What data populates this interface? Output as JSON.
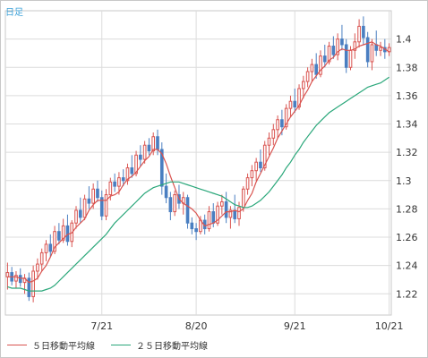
{
  "period_label": "日足",
  "colors": {
    "up": "#d9534f",
    "down": "#4a7fc1",
    "ma5": "#d9534f",
    "ma25": "#2aa77a",
    "grid": "#dcdcdc",
    "period_label": "#3aa0d8"
  },
  "chart_data": {
    "type": "candlestick",
    "title": "",
    "xlabel": "",
    "ylabel": "",
    "ylim": [
      1.205,
      1.42
    ],
    "y_ticks": [
      "1.22",
      "1.24",
      "1.26",
      "1.28",
      "1.3",
      "1.32",
      "1.34",
      "1.36",
      "1.38",
      "1.4"
    ],
    "x_ticks": [
      {
        "label": "7/21",
        "index": 22
      },
      {
        "label": "8/20",
        "index": 44
      },
      {
        "label": "9/21",
        "index": 67
      },
      {
        "label": "10/21",
        "index": 89
      }
    ],
    "grid": true,
    "legend_position": "bottom",
    "candles": [
      [
        1.232,
        1.242,
        1.223,
        1.235
      ],
      [
        1.235,
        1.239,
        1.226,
        1.229
      ],
      [
        1.229,
        1.236,
        1.224,
        1.233
      ],
      [
        1.233,
        1.238,
        1.225,
        1.228
      ],
      [
        1.228,
        1.234,
        1.22,
        1.231
      ],
      [
        1.231,
        1.235,
        1.215,
        1.218
      ],
      [
        1.218,
        1.24,
        1.214,
        1.236
      ],
      [
        1.236,
        1.245,
        1.23,
        1.241
      ],
      [
        1.241,
        1.252,
        1.236,
        1.249
      ],
      [
        1.249,
        1.258,
        1.243,
        1.255
      ],
      [
        1.255,
        1.262,
        1.246,
        1.25
      ],
      [
        1.25,
        1.268,
        1.248,
        1.264
      ],
      [
        1.264,
        1.27,
        1.255,
        1.258
      ],
      [
        1.258,
        1.273,
        1.256,
        1.268
      ],
      [
        1.268,
        1.276,
        1.254,
        1.257
      ],
      [
        1.257,
        1.272,
        1.253,
        1.27
      ],
      [
        1.27,
        1.282,
        1.266,
        1.279
      ],
      [
        1.279,
        1.288,
        1.27,
        1.274
      ],
      [
        1.274,
        1.29,
        1.272,
        1.287
      ],
      [
        1.287,
        1.296,
        1.28,
        1.284
      ],
      [
        1.284,
        1.298,
        1.28,
        1.294
      ],
      [
        1.294,
        1.3,
        1.285,
        1.288
      ],
      [
        1.288,
        1.293,
        1.272,
        1.275
      ],
      [
        1.275,
        1.294,
        1.272,
        1.29
      ],
      [
        1.29,
        1.302,
        1.286,
        1.299
      ],
      [
        1.299,
        1.305,
        1.292,
        1.296
      ],
      [
        1.296,
        1.306,
        1.29,
        1.302
      ],
      [
        1.302,
        1.308,
        1.296,
        1.3
      ],
      [
        1.3,
        1.312,
        1.297,
        1.309
      ],
      [
        1.309,
        1.318,
        1.302,
        1.305
      ],
      [
        1.305,
        1.321,
        1.303,
        1.318
      ],
      [
        1.318,
        1.325,
        1.31,
        1.315
      ],
      [
        1.315,
        1.328,
        1.312,
        1.325
      ],
      [
        1.325,
        1.33,
        1.318,
        1.321
      ],
      [
        1.321,
        1.334,
        1.318,
        1.331
      ],
      [
        1.331,
        1.336,
        1.318,
        1.322
      ],
      [
        1.322,
        1.327,
        1.29,
        1.296
      ],
      [
        1.296,
        1.305,
        1.284,
        1.288
      ],
      [
        1.288,
        1.292,
        1.272,
        1.278
      ],
      [
        1.278,
        1.293,
        1.275,
        1.29
      ],
      [
        1.29,
        1.297,
        1.28,
        1.284
      ],
      [
        1.284,
        1.292,
        1.276,
        1.288
      ],
      [
        1.288,
        1.29,
        1.266,
        1.27
      ],
      [
        1.27,
        1.274,
        1.262,
        1.266
      ],
      [
        1.266,
        1.27,
        1.258,
        1.264
      ],
      [
        1.264,
        1.275,
        1.262,
        1.272
      ],
      [
        1.272,
        1.276,
        1.262,
        1.266
      ],
      [
        1.266,
        1.282,
        1.264,
        1.278
      ],
      [
        1.278,
        1.284,
        1.267,
        1.27
      ],
      [
        1.27,
        1.285,
        1.268,
        1.282
      ],
      [
        1.282,
        1.29,
        1.276,
        1.285
      ],
      [
        1.285,
        1.292,
        1.27,
        1.274
      ],
      [
        1.274,
        1.282,
        1.266,
        1.279
      ],
      [
        1.279,
        1.29,
        1.27,
        1.273
      ],
      [
        1.273,
        1.285,
        1.268,
        1.281
      ],
      [
        1.281,
        1.296,
        1.278,
        1.294
      ],
      [
        1.294,
        1.305,
        1.29,
        1.302
      ],
      [
        1.302,
        1.311,
        1.296,
        1.307
      ],
      [
        1.307,
        1.316,
        1.3,
        1.313
      ],
      [
        1.313,
        1.322,
        1.306,
        1.309
      ],
      [
        1.309,
        1.328,
        1.307,
        1.325
      ],
      [
        1.325,
        1.334,
        1.318,
        1.33
      ],
      [
        1.33,
        1.34,
        1.325,
        1.336
      ],
      [
        1.336,
        1.346,
        1.33,
        1.343
      ],
      [
        1.343,
        1.35,
        1.332,
        1.338
      ],
      [
        1.338,
        1.354,
        1.336,
        1.351
      ],
      [
        1.351,
        1.36,
        1.345,
        1.356
      ],
      [
        1.356,
        1.365,
        1.348,
        1.352
      ],
      [
        1.352,
        1.368,
        1.35,
        1.365
      ],
      [
        1.365,
        1.374,
        1.358,
        1.37
      ],
      [
        1.37,
        1.38,
        1.366,
        1.377
      ],
      [
        1.377,
        1.386,
        1.37,
        1.382
      ],
      [
        1.382,
        1.39,
        1.372,
        1.375
      ],
      [
        1.375,
        1.392,
        1.373,
        1.388
      ],
      [
        1.388,
        1.396,
        1.38,
        1.384
      ],
      [
        1.384,
        1.398,
        1.382,
        1.395
      ],
      [
        1.395,
        1.402,
        1.386,
        1.389
      ],
      [
        1.389,
        1.404,
        1.385,
        1.4
      ],
      [
        1.4,
        1.41,
        1.392,
        1.396
      ],
      [
        1.396,
        1.4,
        1.376,
        1.38
      ],
      [
        1.38,
        1.395,
        1.378,
        1.392
      ],
      [
        1.392,
        1.404,
        1.386,
        1.398
      ],
      [
        1.398,
        1.414,
        1.394,
        1.409
      ],
      [
        1.409,
        1.416,
        1.396,
        1.401
      ],
      [
        1.401,
        1.405,
        1.38,
        1.384
      ],
      [
        1.384,
        1.4,
        1.378,
        1.396
      ],
      [
        1.396,
        1.406,
        1.388,
        1.392
      ],
      [
        1.392,
        1.398,
        1.388,
        1.394
      ],
      [
        1.394,
        1.4,
        1.386,
        1.391
      ],
      [
        1.391,
        1.397,
        1.388,
        1.394
      ]
    ],
    "series": [
      {
        "name": "５日移動平均線",
        "values": [
          1.232,
          1.232,
          1.232,
          1.231,
          1.231,
          1.228,
          1.229,
          1.231,
          1.236,
          1.24,
          1.246,
          1.253,
          1.256,
          1.259,
          1.262,
          1.263,
          1.267,
          1.27,
          1.273,
          1.279,
          1.283,
          1.286,
          1.286,
          1.286,
          1.289,
          1.29,
          1.292,
          1.297,
          1.301,
          1.303,
          1.306,
          1.31,
          1.314,
          1.317,
          1.322,
          1.322,
          1.319,
          1.312,
          1.303,
          1.295,
          1.287,
          1.284,
          1.282,
          1.28,
          1.277,
          1.272,
          1.268,
          1.269,
          1.27,
          1.272,
          1.275,
          1.278,
          1.278,
          1.279,
          1.278,
          1.28,
          1.286,
          1.291,
          1.299,
          1.305,
          1.311,
          1.317,
          1.323,
          1.33,
          1.335,
          1.34,
          1.345,
          1.349,
          1.353,
          1.359,
          1.364,
          1.37,
          1.374,
          1.378,
          1.381,
          1.385,
          1.387,
          1.391,
          1.393,
          1.392,
          1.392,
          1.393,
          1.395,
          1.396,
          1.397,
          1.398,
          1.396,
          1.395,
          1.393,
          1.391
        ]
      },
      {
        "name": "２５日移動平均線",
        "values": [
          1.225,
          1.224,
          1.224,
          1.224,
          1.223,
          1.222,
          1.222,
          1.222,
          1.222,
          1.223,
          1.224,
          1.226,
          1.229,
          1.232,
          1.235,
          1.238,
          1.241,
          1.244,
          1.247,
          1.25,
          1.253,
          1.256,
          1.259,
          1.262,
          1.266,
          1.27,
          1.273,
          1.276,
          1.279,
          1.282,
          1.285,
          1.288,
          1.291,
          1.293,
          1.295,
          1.296,
          1.297,
          1.298,
          1.299,
          1.299,
          1.299,
          1.298,
          1.297,
          1.296,
          1.295,
          1.294,
          1.293,
          1.292,
          1.291,
          1.29,
          1.289,
          1.287,
          1.285,
          1.283,
          1.282,
          1.281,
          1.281,
          1.282,
          1.284,
          1.286,
          1.289,
          1.292,
          1.296,
          1.3,
          1.304,
          1.309,
          1.313,
          1.318,
          1.322,
          1.327,
          1.331,
          1.335,
          1.339,
          1.342,
          1.345,
          1.348,
          1.35,
          1.352,
          1.354,
          1.356,
          1.358,
          1.36,
          1.362,
          1.364,
          1.366,
          1.367,
          1.368,
          1.369,
          1.371,
          1.373
        ]
      }
    ]
  }
}
